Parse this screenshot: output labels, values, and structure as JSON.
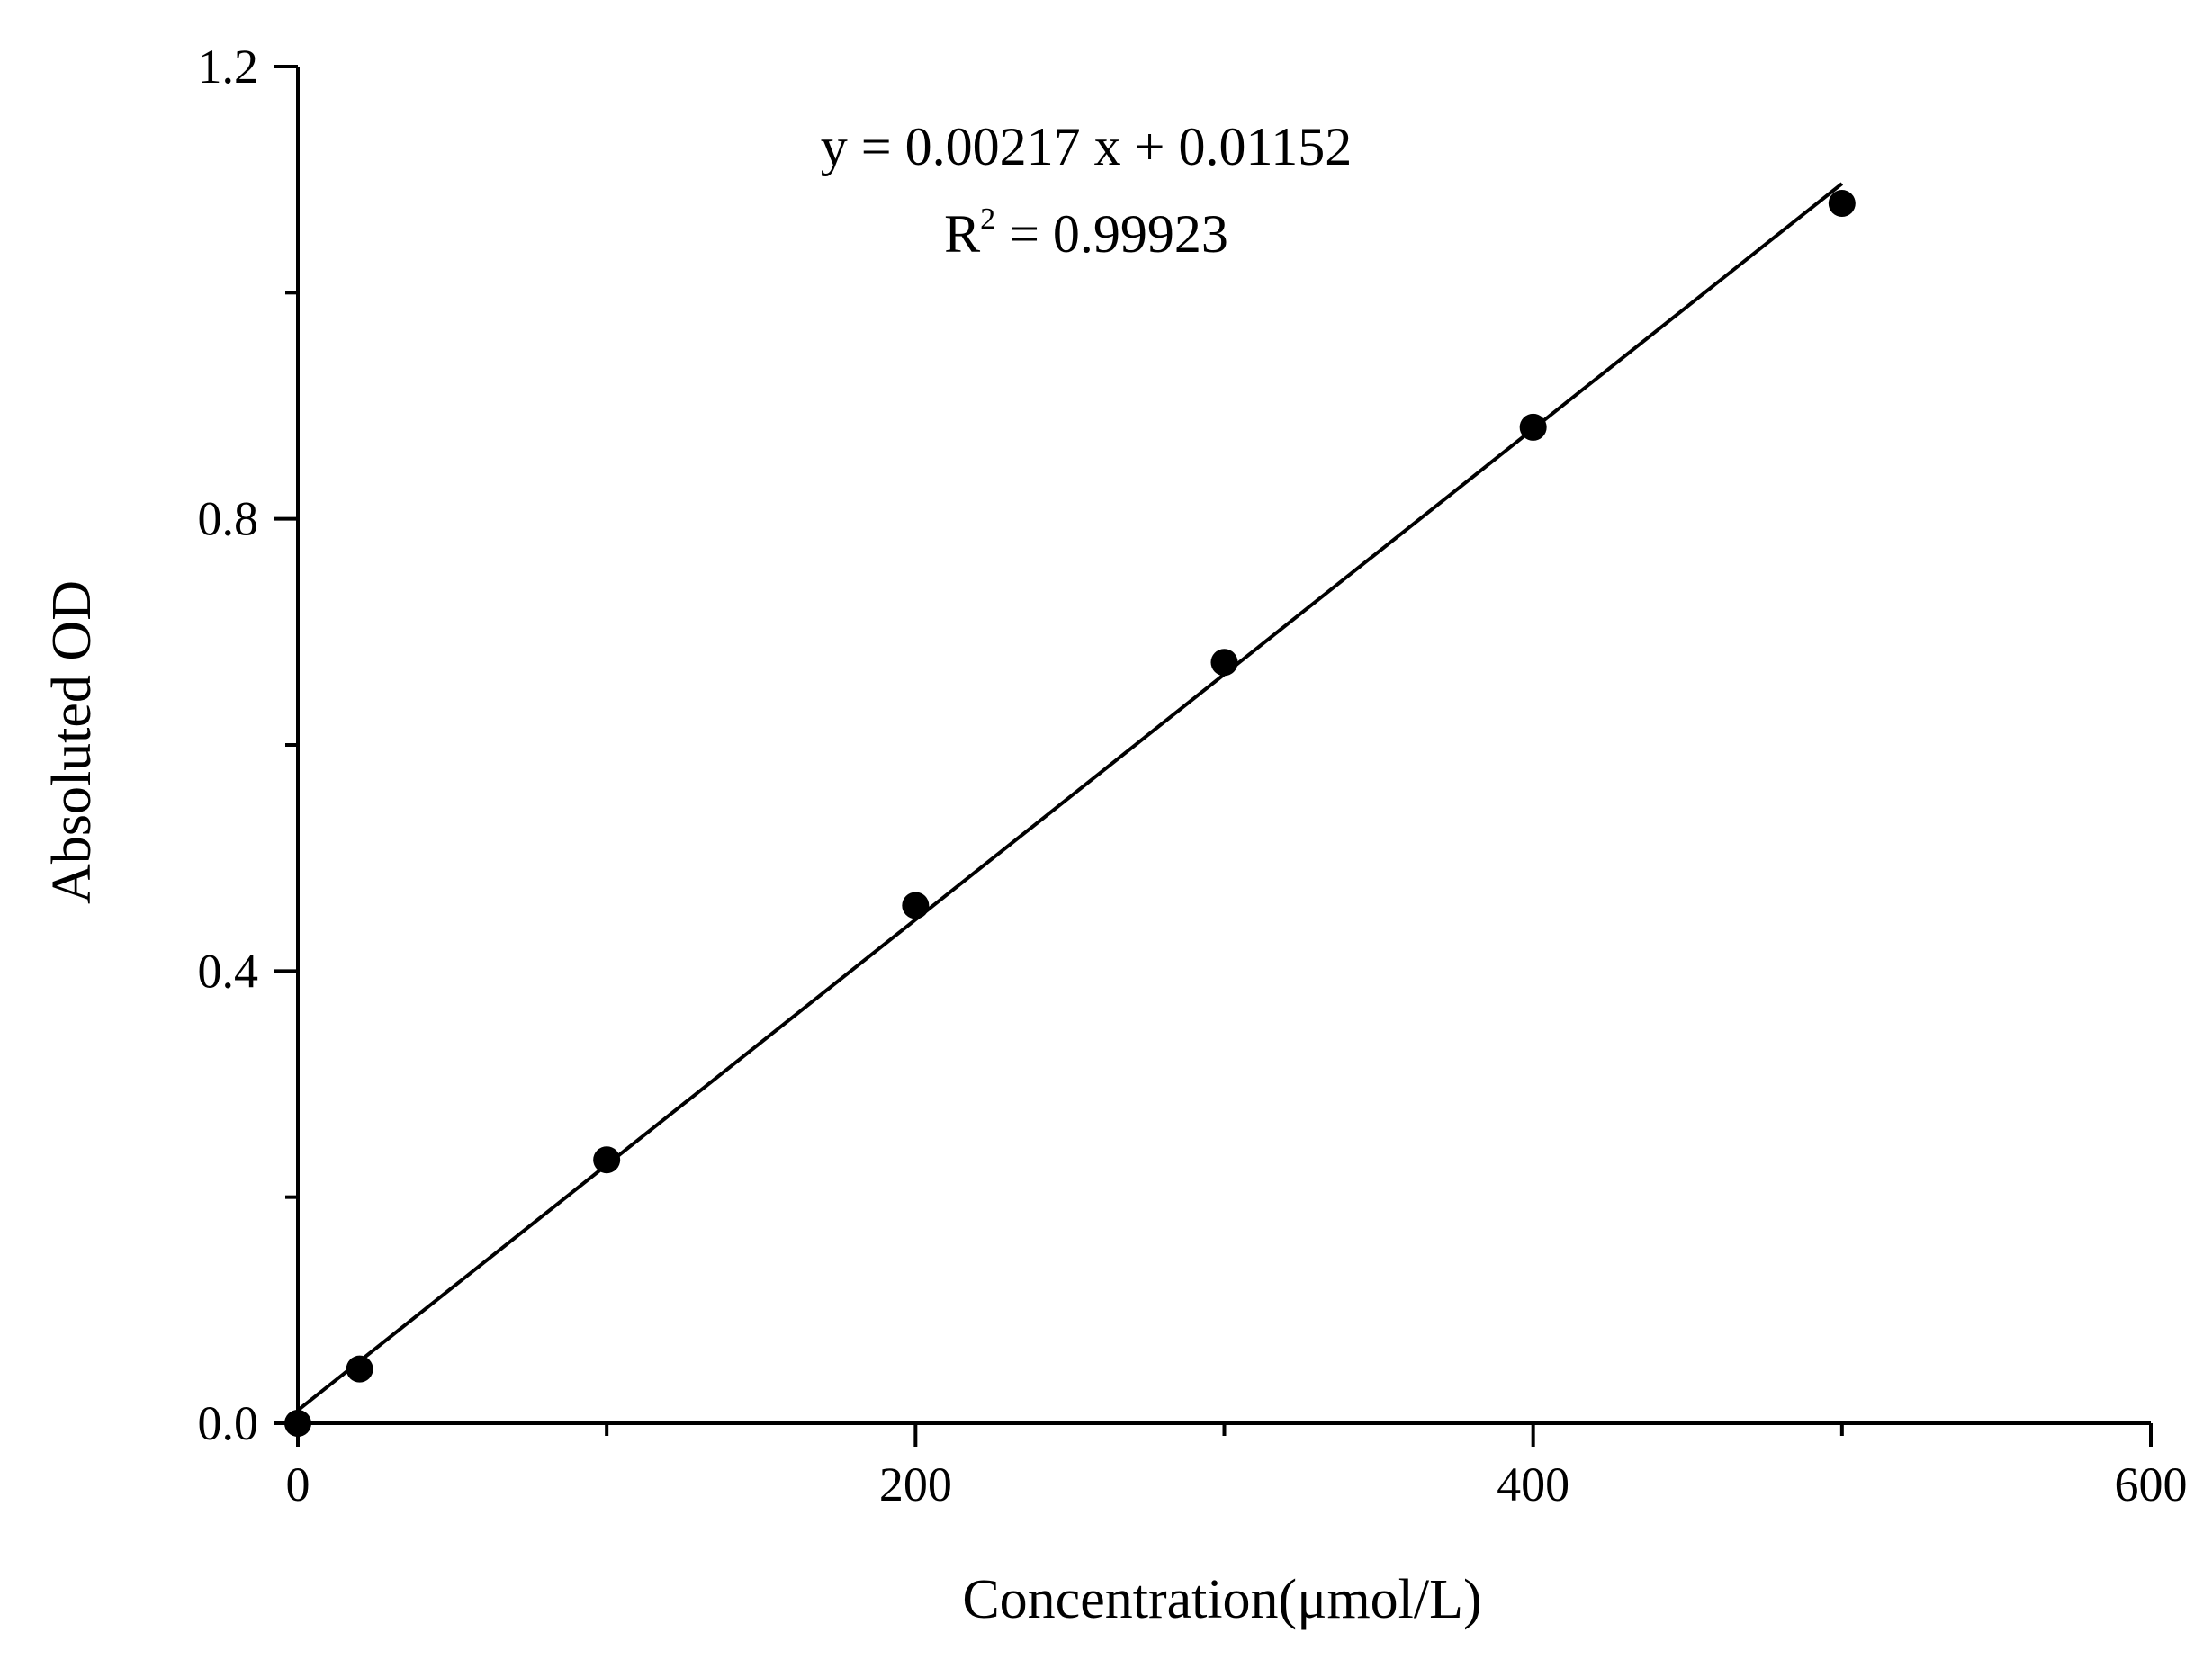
{
  "chart_data": {
    "type": "scatter",
    "xlabel": "Concentration(μmol/L)",
    "ylabel": "Absoluted OD",
    "xlim": [
      0,
      600
    ],
    "ylim": [
      0,
      1.2
    ],
    "x_ticks": [
      0,
      200,
      400,
      600
    ],
    "x_tick_labels": [
      "0",
      "200",
      "400",
      "600"
    ],
    "x_minor_ticks": [
      100,
      300,
      500
    ],
    "y_ticks": [
      0.0,
      0.4,
      0.8,
      1.2
    ],
    "y_tick_labels": [
      "0.0",
      "0.4",
      "0.8",
      "1.2"
    ],
    "y_minor_ticks": [
      0.2,
      0.6,
      1.0
    ],
    "grid": false,
    "series": [
      {
        "points": [
          {
            "x": 0,
            "y": 0.0
          },
          {
            "x": 20,
            "y": 0.048
          },
          {
            "x": 100,
            "y": 0.233
          },
          {
            "x": 200,
            "y": 0.458
          },
          {
            "x": 300,
            "y": 0.673
          },
          {
            "x": 400,
            "y": 0.881
          },
          {
            "x": 500,
            "y": 1.079
          }
        ],
        "color": "#000000",
        "marker": "filled-circle"
      }
    ],
    "fit_line": {
      "slope": 0.00217,
      "intercept": 0.01152,
      "x_range": [
        0,
        500
      ],
      "color": "#000000"
    },
    "annotation": {
      "equation": "y = 0.00217 x + 0.01152",
      "r2_prefix": "R",
      "r2_exponent": "2",
      "r2_suffix": " = 0.99923"
    }
  }
}
